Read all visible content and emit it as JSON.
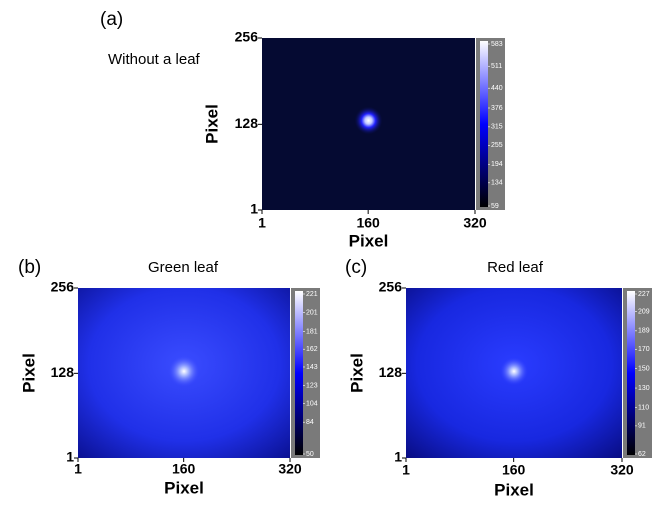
{
  "chart_data": [
    {
      "type": "heatmap",
      "panel_label": "(a)",
      "title": "Without a leaf",
      "xlabel": "Pixel",
      "ylabel": "Pixel",
      "xlim": [
        1,
        320
      ],
      "ylim": [
        1,
        256
      ],
      "xticks": [
        1,
        160,
        320
      ],
      "yticks": [
        1,
        128,
        256
      ],
      "colormap": [
        "#000000",
        "#0000ff",
        "#ffffff"
      ],
      "clim": [
        59,
        583
      ],
      "cticks": [
        583,
        511,
        440,
        376,
        315,
        255,
        194,
        134,
        59
      ]
    },
    {
      "type": "heatmap",
      "panel_label": "(b)",
      "title": "Green leaf",
      "xlabel": "Pixel",
      "ylabel": "Pixel",
      "xlim": [
        1,
        320
      ],
      "ylim": [
        1,
        256
      ],
      "xticks": [
        1,
        160,
        320
      ],
      "yticks": [
        1,
        128,
        256
      ],
      "colormap": [
        "#000000",
        "#0000ff",
        "#ffffff"
      ],
      "clim": [
        50,
        221
      ],
      "cticks": [
        221,
        201,
        181,
        162,
        143,
        123,
        104,
        84,
        50
      ]
    },
    {
      "type": "heatmap",
      "panel_label": "(c)",
      "title": "Red leaf",
      "xlabel": "Pixel",
      "ylabel": "Pixel",
      "xlim": [
        1,
        320
      ],
      "ylim": [
        1,
        256
      ],
      "xticks": [
        1,
        160,
        320
      ],
      "yticks": [
        1,
        128,
        256
      ],
      "colormap": [
        "#000000",
        "#0000ff",
        "#ffffff"
      ],
      "clim": [
        62,
        227
      ],
      "cticks": [
        227,
        209,
        189,
        170,
        150,
        130,
        110,
        91,
        62
      ]
    }
  ]
}
